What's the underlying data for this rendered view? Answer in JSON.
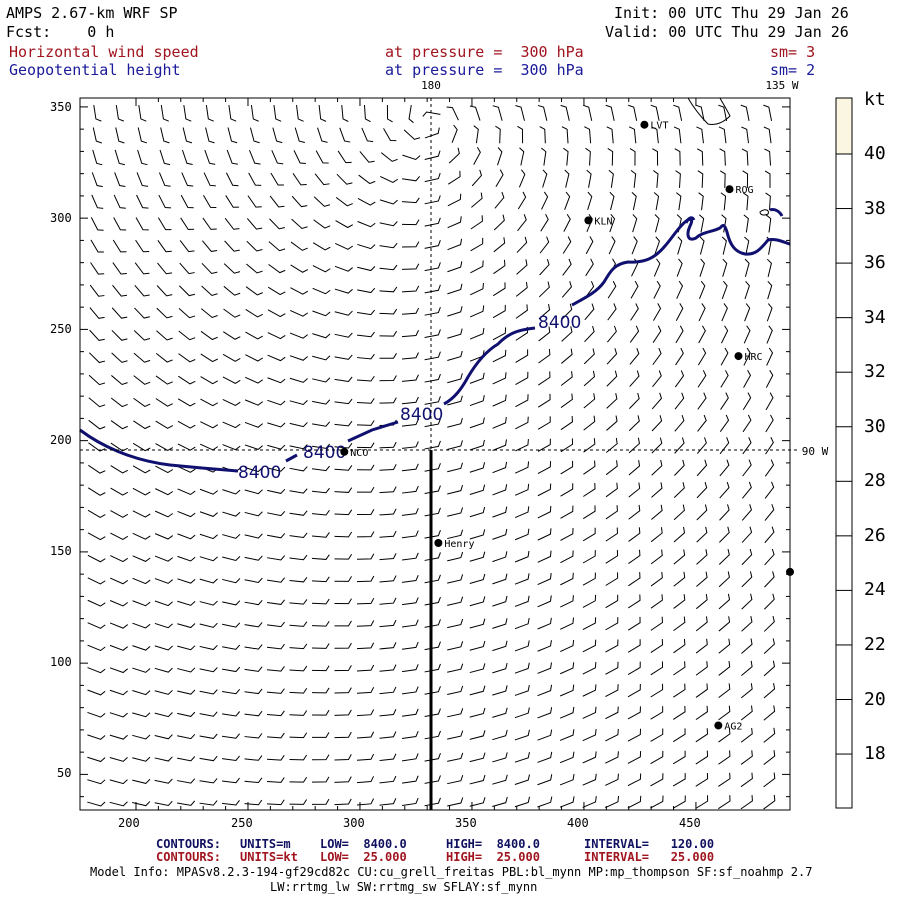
{
  "header": {
    "model": "AMPS 2.67-km WRF SP",
    "fcst": "Fcst:    0 h",
    "init": "Init: 00 UTC Thu 29 Jan 26",
    "valid": "Valid: 00 UTC Thu 29 Jan 26",
    "field1": "Horizontal wind speed",
    "field2": "Geopotential height",
    "press1": "at pressure =  300 hPa",
    "press2": "at pressure =  300 hPa",
    "sm1": "sm= 3",
    "sm2": "sm= 2"
  },
  "map": {
    "lon_labels": {
      "top_180": "180",
      "top_135w": "135 W",
      "right_90w": "90 W"
    },
    "contour_labels": [
      "8400",
      "8400",
      "8400",
      "8400"
    ],
    "stations": [
      {
        "name": "LVT",
        "x": 427,
        "y": 342
      },
      {
        "name": "ROG",
        "x": 465,
        "y": 313
      },
      {
        "name": "KLN",
        "x": 402,
        "y": 299
      },
      {
        "name": "HRC",
        "x": 469,
        "y": 238
      },
      {
        "name": "NCO",
        "x": 293,
        "y": 195
      },
      {
        "name": "Henry",
        "x": 335,
        "y": 154
      },
      {
        "name": "",
        "x": 492,
        "y": 141
      },
      {
        "name": "AG2",
        "x": 460,
        "y": 72
      }
    ],
    "x_ticks": [
      "200",
      "250",
      "300",
      "350",
      "400",
      "450"
    ],
    "y_ticks": [
      "350",
      "300",
      "250",
      "200",
      "150",
      "100",
      "50"
    ]
  },
  "colorbar": {
    "unit": "kt",
    "labels": [
      "40",
      "38",
      "36",
      "34",
      "32",
      "30",
      "28",
      "26",
      "24",
      "22",
      "20",
      "18"
    ],
    "top_color": "#fbf6e1"
  },
  "footer": {
    "c1": {
      "label": "CONTOURS:",
      "units": "UNITS=m",
      "low": "LOW=  8400.0",
      "high": "HIGH=  8400.0",
      "interval": "INTERVAL=   120.00"
    },
    "c2": {
      "label": "CONTOURS:",
      "units": "UNITS=kt",
      "low": "LOW=  25.000",
      "high": "HIGH=  25.000",
      "interval": "INTERVAL=   25.000"
    },
    "info1": "Model Info: MPASv8.2.3-194-gf29cd82c CU:cu_grell_freitas PBL:bl_mynn MP:mp_thompson SF:sf_noahmp 2.7",
    "info2": "LW:rrtmg_lw SW:rrtmg_sw SFLAY:sf_mynn"
  },
  "colors": {
    "contour": "#101070",
    "red_text": "#a0141e",
    "blue_text": "#1a1a9a"
  }
}
